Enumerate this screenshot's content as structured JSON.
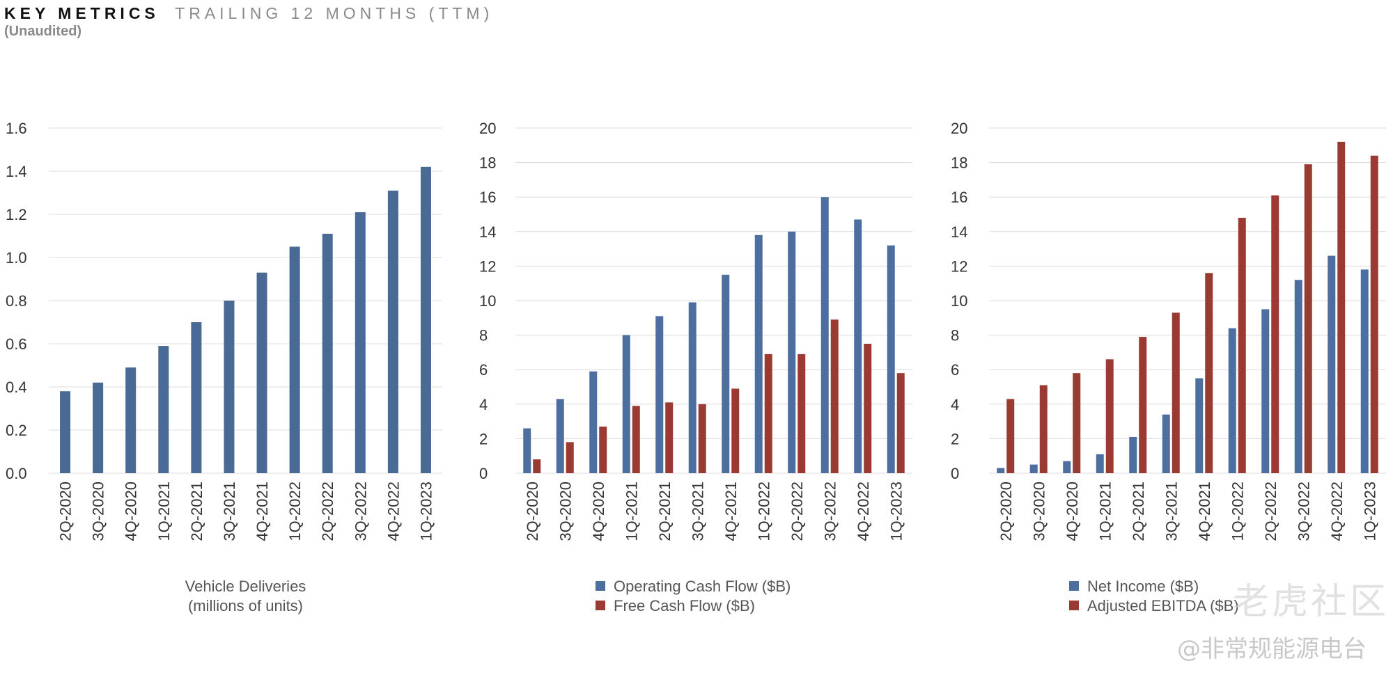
{
  "header": {
    "title": "KEY METRICS",
    "title_suffix": "TRAILING 12 MONTHS (TTM)",
    "subtitle": "(Unaudited)"
  },
  "watermark": {
    "text": "@非常规能源电台",
    "logo_text": "老虎社区"
  },
  "chart_data": [
    {
      "type": "bar",
      "categories": [
        "2Q-2020",
        "3Q-2020",
        "4Q-2020",
        "1Q-2021",
        "2Q-2021",
        "3Q-2021",
        "4Q-2021",
        "1Q-2022",
        "2Q-2022",
        "3Q-2022",
        "4Q-2022",
        "1Q-2023"
      ],
      "series": [
        {
          "name": "Vehicle Deliveries (millions of units)",
          "color": "#4a6a96",
          "values": [
            0.38,
            0.42,
            0.49,
            0.59,
            0.7,
            0.8,
            0.93,
            1.05,
            1.11,
            1.21,
            1.31,
            1.42
          ]
        }
      ],
      "ylim": [
        0,
        1.6
      ],
      "yticks": [
        "0.0",
        "0.2",
        "0.4",
        "0.6",
        "0.8",
        "1.0",
        "1.2",
        "1.4",
        "1.6"
      ],
      "xlabel": "Vehicle Deliveries\n(millions of units)",
      "legend": "none",
      "grid": true
    },
    {
      "type": "bar",
      "categories": [
        "2Q-2020",
        "3Q-2020",
        "4Q-2020",
        "1Q-2021",
        "2Q-2021",
        "3Q-2021",
        "4Q-2021",
        "1Q-2022",
        "2Q-2022",
        "3Q-2022",
        "4Q-2022",
        "1Q-2023"
      ],
      "series": [
        {
          "name": "Operating Cash Flow ($B)",
          "color": "#4d6f9f",
          "values": [
            2.6,
            4.3,
            5.9,
            8.0,
            9.1,
            9.9,
            11.5,
            13.8,
            14.0,
            16.0,
            14.7,
            13.2
          ]
        },
        {
          "name": "Free Cash Flow ($B)",
          "color": "#9a3a33",
          "values": [
            0.8,
            1.8,
            2.7,
            3.9,
            4.1,
            4.0,
            4.9,
            6.9,
            6.9,
            8.9,
            7.5,
            5.8
          ]
        }
      ],
      "ylim": [
        0,
        20
      ],
      "yticks": [
        "0",
        "2",
        "4",
        "6",
        "8",
        "10",
        "12",
        "14",
        "16",
        "18",
        "20"
      ],
      "legend": "bottom",
      "grid": true
    },
    {
      "type": "bar",
      "categories": [
        "2Q-2020",
        "3Q-2020",
        "4Q-2020",
        "1Q-2021",
        "2Q-2021",
        "3Q-2021",
        "4Q-2021",
        "1Q-2022",
        "2Q-2022",
        "3Q-2022",
        "4Q-2022",
        "1Q-2023"
      ],
      "series": [
        {
          "name": "Net Income ($B)",
          "color": "#4d6f9f",
          "values": [
            0.3,
            0.5,
            0.7,
            1.1,
            2.1,
            3.4,
            5.5,
            8.4,
            9.5,
            11.2,
            12.6,
            11.8
          ]
        },
        {
          "name": "Adjusted EBITDA ($B)",
          "color": "#9a3a33",
          "values": [
            4.3,
            5.1,
            5.8,
            6.6,
            7.9,
            9.3,
            11.6,
            14.8,
            16.1,
            17.9,
            19.2,
            18.4
          ]
        }
      ],
      "ylim": [
        0,
        20
      ],
      "yticks": [
        "0",
        "2",
        "4",
        "6",
        "8",
        "10",
        "12",
        "14",
        "16",
        "18",
        "20"
      ],
      "legend": "bottom",
      "grid": true
    }
  ]
}
